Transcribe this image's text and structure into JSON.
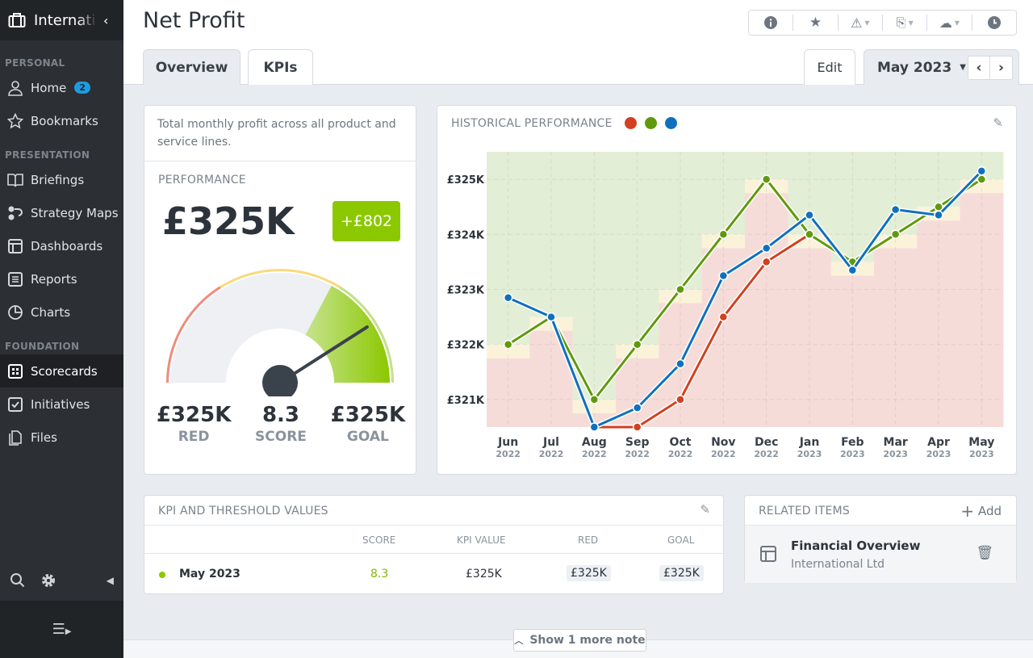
{
  "sidebar": {
    "org": "International Ltd",
    "sections": [
      {
        "label": "PERSONAL",
        "items": [
          {
            "label": "Home",
            "icon": "user-icon",
            "badge": "2"
          },
          {
            "label": "Bookmarks",
            "icon": "star-icon"
          }
        ]
      },
      {
        "label": "PRESENTATION",
        "items": [
          {
            "label": "Briefings",
            "icon": "book-icon"
          },
          {
            "label": "Strategy Maps",
            "icon": "strategy-map-icon"
          },
          {
            "label": "Dashboards",
            "icon": "dashboard-icon"
          },
          {
            "label": "Reports",
            "icon": "report-icon"
          },
          {
            "label": "Charts",
            "icon": "pie-chart-icon"
          }
        ]
      },
      {
        "label": "FOUNDATION",
        "items": [
          {
            "label": "Scorecards",
            "icon": "scorecard-icon",
            "active": true
          },
          {
            "label": "Initiatives",
            "icon": "checkbox-icon"
          },
          {
            "label": "Files",
            "icon": "files-icon"
          }
        ]
      }
    ]
  },
  "header": {
    "title": "Net Profit",
    "tabs": [
      "Overview",
      "KPIs"
    ],
    "edit": "Edit",
    "period": "May 2023"
  },
  "summary": {
    "description": "Total monthly profit across all product and service lines.",
    "performance_label": "PERFORMANCE",
    "value": "£325K",
    "change": "+£802",
    "red": "£325K",
    "red_label": "RED",
    "score": "8.3",
    "score_label": "SCORE",
    "goal": "£325K",
    "goal_label": "GOAL",
    "score_fraction": 0.83,
    "colors": {
      "red": "#f08c7c",
      "yellow": "#fbd97a",
      "green": "#8cc800"
    }
  },
  "chart_data": {
    "type": "line",
    "title": "HISTORICAL PERFORMANCE",
    "ylim": [
      320.5,
      325.5
    ],
    "yticks": [
      321,
      322,
      323,
      324,
      325
    ],
    "ytick_labels": [
      "£321K",
      "£322K",
      "£323K",
      "£324K",
      "£325K"
    ],
    "categories": [
      "Jun",
      "Jul",
      "Aug",
      "Sep",
      "Oct",
      "Nov",
      "Dec",
      "Jan",
      "Feb",
      "Mar",
      "Apr",
      "May"
    ],
    "years": [
      "2022",
      "2022",
      "2022",
      "2022",
      "2022",
      "2022",
      "2022",
      "2023",
      "2023",
      "2023",
      "2023",
      "2023"
    ],
    "series": [
      {
        "color": "#d2401f",
        "values": [
          null,
          null,
          320.5,
          320.5,
          321,
          322.5,
          323.5,
          324,
          null,
          null,
          null,
          null
        ]
      },
      {
        "color": "#5f9a0c",
        "values": [
          322,
          322.5,
          321,
          322,
          323,
          324,
          325,
          324,
          323.5,
          324,
          324.5,
          325
        ]
      },
      {
        "color": "#0f71bd",
        "values": [
          322.85,
          322.5,
          320.5,
          320.85,
          321.65,
          323.25,
          323.75,
          324.35,
          323.35,
          324.45,
          324.35,
          325.15
        ]
      }
    ],
    "band_colors": {
      "below": "#f6dcd8",
      "threshold": "#fbf2da",
      "above": "#e3eed6"
    }
  },
  "kpi_table": {
    "title": "KPI AND THRESHOLD VALUES",
    "columns": [
      "SCORE",
      "KPI VALUE",
      "RED",
      "GOAL"
    ],
    "rows": [
      {
        "period": "May 2023",
        "score": "8.3",
        "kpi": "£325K",
        "red": "£325K",
        "goal": "£325K"
      }
    ]
  },
  "related": {
    "title": "RELATED ITEMS",
    "add": "Add",
    "items": [
      {
        "name": "Financial Overview",
        "sub": "International Ltd"
      }
    ]
  },
  "note_button": "Show 1 more note"
}
